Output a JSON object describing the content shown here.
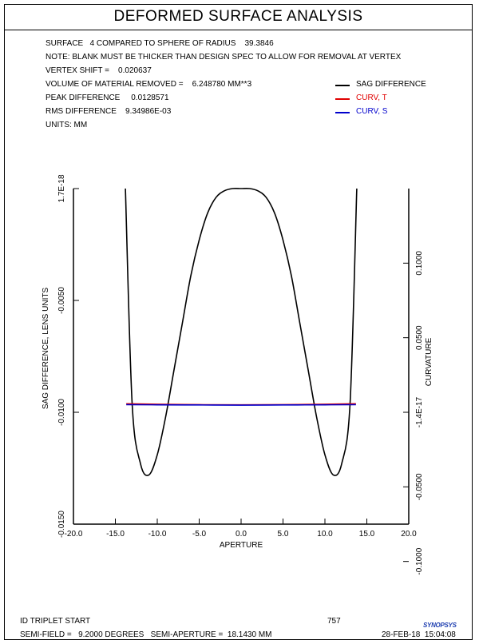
{
  "title": "DEFORMED SURFACE ANALYSIS",
  "info": {
    "surface": "SURFACE   4 COMPARED TO SPHERE OF RADIUS    39.3846",
    "note": "NOTE: BLANK MUST BE THICKER THAN DESIGN SPEC TO ALLOW FOR REMOVAL AT VERTEX",
    "vertex_shift": "VERTEX SHIFT =    0.020637",
    "volume": "VOLUME OF MATERIAL REMOVED =    6.248780 MM**3",
    "peak": "PEAK DIFFERENCE     0.0128571",
    "rms": "RMS DIFFERENCE    9.34986E-03",
    "units": "UNITS: MM"
  },
  "legend": [
    {
      "label": "SAG DIFFERENCE",
      "color": "#000000"
    },
    {
      "label": "CURV, T",
      "color": "#e00000"
    },
    {
      "label": "CURV, S",
      "color": "#0000cc"
    }
  ],
  "footer": {
    "left1": "ID TRIPLET START",
    "num": "757",
    "left2": "SEMI-FIELD =   9.2000 DEGREES   SEMI-APERTURE =  18.1430 MM",
    "date": "28-FEB-18  15:04:08",
    "logo": "SYNOPSYS"
  },
  "chart_data": {
    "type": "line",
    "xlabel": "APERTURE",
    "ylabel_left": "SAG DIFFERENCE, LENS UNITS",
    "ylabel_right": "CURVATURE",
    "xlim": [
      -20.0,
      20.0
    ],
    "xticks": [
      "-20.0",
      "-15.0",
      "-10.0",
      "-5.0",
      "0.0",
      "5.0",
      "10.0",
      "15.0",
      "20.0"
    ],
    "xtick_values": [
      -20,
      -15,
      -10,
      -5,
      0,
      5,
      10,
      15,
      20
    ],
    "ylim_left": [
      -0.015,
      0.0
    ],
    "yticks_left": [
      "1.7E-18",
      "-0.0050",
      "-0.0100",
      "-0.0150"
    ],
    "ytick_values_left": [
      0.0,
      -0.005,
      -0.01,
      -0.015
    ],
    "ylim_right": [
      -0.075,
      0.15
    ],
    "yticks_right": [
      "0.1000",
      "0.0500",
      "-1.4E-17",
      "-0.0500",
      "-0.1000"
    ],
    "ytick_values_right": [
      0.1,
      0.05,
      0.0,
      -0.05,
      -0.1
    ],
    "series": [
      {
        "name": "SAG DIFFERENCE",
        "color": "#000000",
        "axis": "left",
        "x": [
          -13.8,
          -13.0,
          -12.0,
          -11.0,
          -10.0,
          -9.0,
          -8.0,
          -7.0,
          -6.0,
          -5.0,
          -4.0,
          -3.0,
          -2.0,
          -1.0,
          0.0,
          1.0,
          2.0,
          3.0,
          4.0,
          5.0,
          6.0,
          7.0,
          8.0,
          9.0,
          10.0,
          11.0,
          12.0,
          13.0,
          13.8
        ],
        "y": [
          0.0,
          -0.0096,
          -0.0123,
          -0.0128,
          -0.0119,
          -0.0102,
          -0.0081,
          -0.006,
          -0.0039,
          -0.0023,
          -0.0011,
          -0.0004,
          -0.0001,
          0.0,
          0.0,
          0.0,
          -0.0001,
          -0.0004,
          -0.0011,
          -0.0023,
          -0.0039,
          -0.006,
          -0.0081,
          -0.0102,
          -0.0119,
          -0.0128,
          -0.0123,
          -0.0096,
          0.0
        ]
      },
      {
        "name": "CURV, T",
        "color": "#e00000",
        "axis": "right",
        "x": [
          -13.7,
          -10.0,
          -5.0,
          0.0,
          5.0,
          10.0,
          13.7
        ],
        "y": [
          0.0057,
          0.0054,
          0.0051,
          0.005,
          0.0051,
          0.0054,
          0.0057
        ]
      },
      {
        "name": "CURV, S",
        "color": "#0000cc",
        "axis": "right",
        "x": [
          -13.7,
          -10.0,
          -5.0,
          0.0,
          5.0,
          10.0,
          13.7
        ],
        "y": [
          0.0051,
          0.005,
          0.0049,
          0.0048,
          0.0049,
          0.005,
          0.0051
        ]
      }
    ]
  }
}
